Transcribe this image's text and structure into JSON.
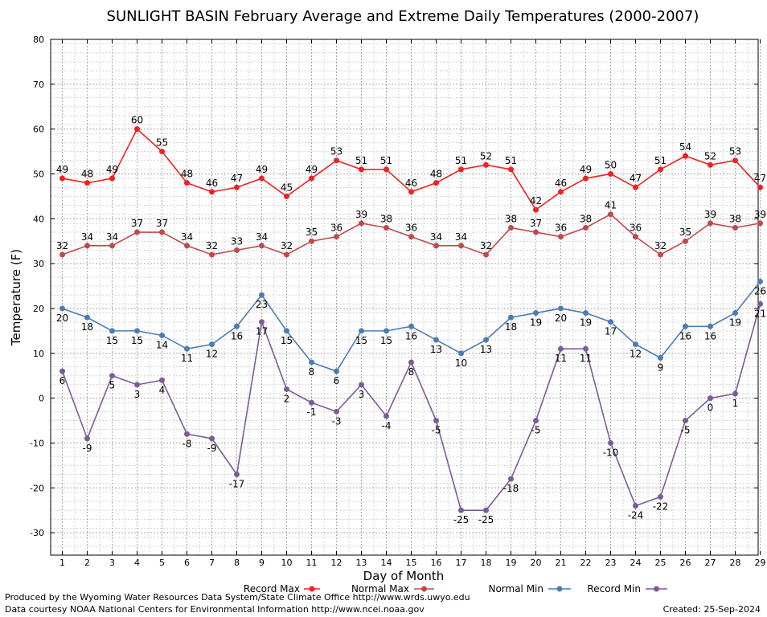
{
  "chart_data": {
    "type": "line",
    "title": "SUNLIGHT BASIN February Average and Extreme Daily Temperatures (2000-2007)",
    "xlabel": "Day of Month",
    "ylabel": "Temperature (F)",
    "ylim": [
      -35,
      80
    ],
    "yticks": [
      80,
      70,
      60,
      50,
      40,
      30,
      20,
      10,
      0,
      -10,
      -20,
      -30
    ],
    "categories": [
      "1",
      "2",
      "3",
      "4",
      "5",
      "6",
      "7",
      "8",
      "9",
      "10",
      "11",
      "12",
      "13",
      "14",
      "15",
      "16",
      "17",
      "18",
      "19",
      "20",
      "21",
      "22",
      "23",
      "24",
      "25",
      "26",
      "27",
      "28",
      "29"
    ],
    "grid": true,
    "legend": "bottom",
    "series": [
      {
        "name": "Record Max",
        "color": "#ee2222",
        "label_pos": "above",
        "values": [
          49,
          48,
          49,
          60,
          55,
          48,
          46,
          47,
          49,
          45,
          49,
          53,
          51,
          51,
          46,
          48,
          51,
          52,
          51,
          42,
          46,
          49,
          50,
          47,
          51,
          54,
          52,
          53,
          47
        ]
      },
      {
        "name": "Normal Max",
        "color": "#c04a4a",
        "label_pos": "above",
        "values": [
          32,
          34,
          34,
          37,
          37,
          34,
          32,
          33,
          34,
          32,
          35,
          36,
          39,
          38,
          36,
          34,
          34,
          32,
          38,
          37,
          36,
          38,
          41,
          36,
          32,
          35,
          39,
          38,
          39
        ]
      },
      {
        "name": "Normal Min",
        "color": "#4a7db5",
        "label_pos": "below",
        "values": [
          20,
          18,
          15,
          15,
          14,
          11,
          12,
          16,
          23,
          15,
          8,
          6,
          15,
          15,
          16,
          13,
          10,
          13,
          18,
          19,
          20,
          19,
          17,
          12,
          9,
          16,
          16,
          19,
          26
        ]
      },
      {
        "name": "Record Min",
        "color": "#7b5c99",
        "label_pos": "below",
        "values": [
          6,
          -9,
          5,
          3,
          4,
          -8,
          -9,
          -17,
          17,
          2,
          -1,
          -3,
          3,
          -4,
          8,
          -5,
          -25,
          -25,
          -18,
          -5,
          11,
          11,
          -10,
          -24,
          -22,
          -5,
          0,
          1,
          21
        ]
      }
    ]
  },
  "footer": {
    "line1": "Produced by the Wyoming Water Resources Data System/State Climate Office http://www.wrds.uwyo.edu",
    "line2": "Data courtesy NOAA National Centers for Environmental Information http://www.ncei.noaa.gov",
    "created": "Created: 25-Sep-2024"
  }
}
